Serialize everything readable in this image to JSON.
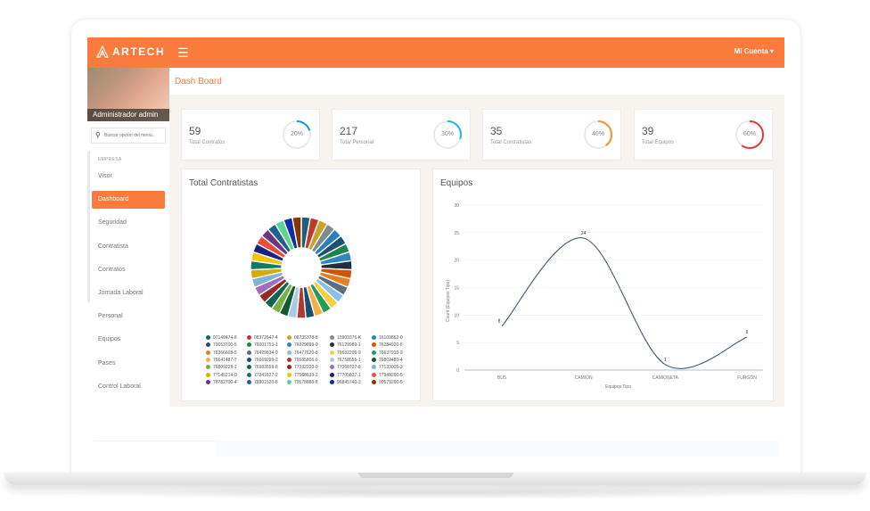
{
  "brand": {
    "name": "ARTECH"
  },
  "topbar": {
    "menu_icon": "☰",
    "account_label": "Mi Cuenta ▾"
  },
  "sidebar": {
    "user_name": "Administrador admin",
    "search_placeholder": "Buscar opción del menú...",
    "section_label": "EMPRESA",
    "items": [
      {
        "label": "Visor"
      },
      {
        "label": "Dashboard",
        "active": true
      },
      {
        "label": "Seguridad"
      },
      {
        "label": "Contratista"
      },
      {
        "label": "Contratos"
      },
      {
        "label": "Jornada Laboral"
      },
      {
        "label": "Personal"
      },
      {
        "label": "Equipos"
      },
      {
        "label": "Pases"
      },
      {
        "label": "Control Laboral"
      }
    ]
  },
  "page": {
    "title": "Dash Board"
  },
  "stats": [
    {
      "value": "59",
      "label": "Total Contratos",
      "percent_label": "20%",
      "percent": 20,
      "color": "#1a8fd6"
    },
    {
      "value": "217",
      "label": "Total Personal",
      "percent_label": "30%",
      "percent": 30,
      "color": "#1fb6e0"
    },
    {
      "value": "35",
      "label": "Total Contratistas",
      "percent_label": "40%",
      "percent": 40,
      "color": "#f0932b"
    },
    {
      "value": "39",
      "label": "Total Equipos",
      "percent_label": "60%",
      "percent": 60,
      "color": "#e53935"
    }
  ],
  "contratistas_card": {
    "title": "Total Contratistas",
    "legend": [
      {
        "label": "07149474-8",
        "color": "#1f5f7a"
      },
      {
        "label": "08372647-4",
        "color": "#c0392b"
      },
      {
        "label": "08735378-8",
        "color": "#c9a227"
      },
      {
        "label": "15909376-K",
        "color": "#7f8c8d"
      },
      {
        "label": "16109862-0",
        "color": "#2980b9"
      },
      {
        "label": "70053700-5",
        "color": "#1a5276"
      },
      {
        "label": "76001753-1",
        "color": "#1e8449"
      },
      {
        "label": "76029899-9",
        "color": "#2e86c1"
      },
      {
        "label": "76129989-1",
        "color": "#212f3c"
      },
      {
        "label": "76284920-8",
        "color": "#d35400"
      },
      {
        "label": "76366608-5",
        "color": "#e67e22"
      },
      {
        "label": "76429834-9",
        "color": "#5d6d7e"
      },
      {
        "label": "76477620-8",
        "color": "#85c1e9"
      },
      {
        "label": "76632206-9",
        "color": "#f4d03f"
      },
      {
        "label": "76637910-9",
        "color": "#239b56"
      },
      {
        "label": "76641487-7",
        "color": "#f5b041"
      },
      {
        "label": "76669299-2",
        "color": "#1b4f72"
      },
      {
        "label": "76685806-6",
        "color": "#b03a2e"
      },
      {
        "label": "76758555-1",
        "color": "#a9cce3"
      },
      {
        "label": "76802480-4",
        "color": "#145a32"
      },
      {
        "label": "76809228-1",
        "color": "#76b041"
      },
      {
        "label": "76983559-8",
        "color": "#0e6655"
      },
      {
        "label": "77032203-0",
        "color": "#922b21"
      },
      {
        "label": "77060707-8",
        "color": "#a569bd"
      },
      {
        "label": "77133005-3",
        "color": "#7fb3d5"
      },
      {
        "label": "77145214-0",
        "color": "#d4ac0d"
      },
      {
        "label": "77241827-2",
        "color": "#117a65"
      },
      {
        "label": "77568633-2",
        "color": "#f1c40f"
      },
      {
        "label": "77705837-1",
        "color": "#1a237e"
      },
      {
        "label": "77949260-5",
        "color": "#e74c3c"
      },
      {
        "label": "78782700-4",
        "color": "#6c3483"
      },
      {
        "label": "78801520-8",
        "color": "#1f618d"
      },
      {
        "label": "79578880-8",
        "color": "#58d68d"
      },
      {
        "label": "96845740-3",
        "color": "#0b2fa8"
      },
      {
        "label": "99579260-5",
        "color": "#873600"
      }
    ]
  },
  "equipos_card": {
    "title": "Equipos"
  },
  "chart_data": {
    "type": "line",
    "title": "Equipos",
    "xlabel": "Equipos Tipo",
    "ylabel": "Count (Equipos Tipo)",
    "categories": [
      "BUS",
      "CAMIÓN",
      "CAMIONETA",
      "FURGÓN"
    ],
    "values": [
      8,
      24,
      1,
      6
    ],
    "value_labels": [
      "8",
      "24",
      "1",
      "6"
    ],
    "yticks": [
      "0",
      "5",
      "10",
      "15",
      "20",
      "25",
      "30"
    ],
    "ylim": [
      0,
      30
    ],
    "grid": true,
    "line_color": "#3d5a73"
  }
}
